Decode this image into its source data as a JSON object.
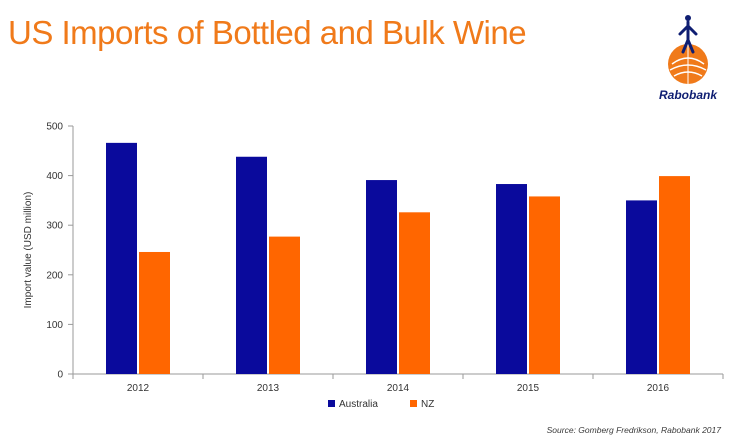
{
  "header": {
    "title": "US Imports of Bottled and Bulk Wine",
    "logo_name": "Rabobank"
  },
  "footer": {
    "source": "Source: Gomberg Fredrikson, Rabobank 2017"
  },
  "colors": {
    "title": "#f07a1a",
    "australia": "#0a0a9c",
    "nz": "#ff6600",
    "axis": "#9a9a9a",
    "logo_text": "#0f1e72"
  },
  "chart_data": {
    "type": "bar",
    "categories": [
      "2012",
      "2013",
      "2014",
      "2015",
      "2016"
    ],
    "series": [
      {
        "name": "Australia",
        "color": "#0a0a9c",
        "values": [
          466,
          438,
          391,
          383,
          350
        ]
      },
      {
        "name": "NZ",
        "color": "#ff6600",
        "values": [
          246,
          277,
          326,
          358,
          399
        ]
      }
    ],
    "ylabel": "Import value (USD million)",
    "xlabel": "",
    "ylim": [
      0,
      500
    ],
    "yticks": [
      0,
      100,
      200,
      300,
      400,
      500
    ],
    "grid": false,
    "legend_position": "bottom-center"
  }
}
